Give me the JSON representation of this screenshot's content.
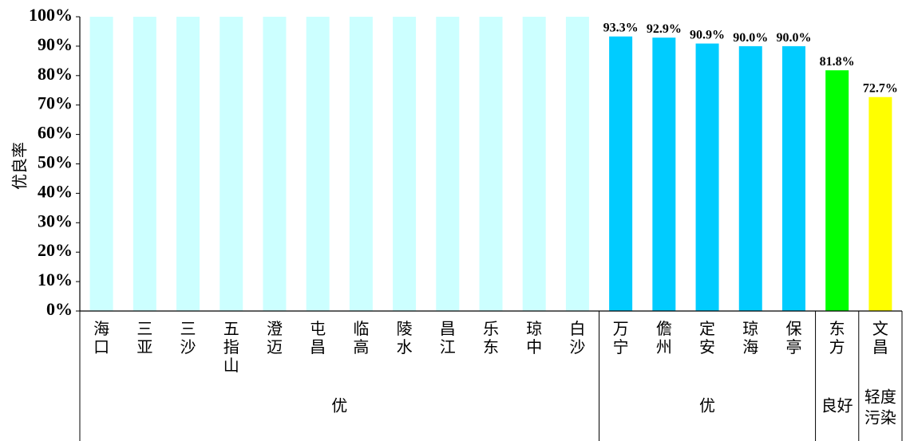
{
  "chart_data": {
    "type": "bar",
    "title": "",
    "xlabel": "",
    "ylabel": "优良率",
    "ylim": [
      0,
      100
    ],
    "y_ticks": [
      "0%",
      "10%",
      "20%",
      "30%",
      "40%",
      "50%",
      "60%",
      "70%",
      "80%",
      "90%",
      "100%"
    ],
    "categories": [
      {
        "name": [
          "海",
          "口"
        ],
        "value": 100,
        "color": "#CCFFFF",
        "label": ""
      },
      {
        "name": [
          "三",
          "亚"
        ],
        "value": 100,
        "color": "#CCFFFF",
        "label": ""
      },
      {
        "name": [
          "三",
          "沙"
        ],
        "value": 100,
        "color": "#CCFFFF",
        "label": ""
      },
      {
        "name": [
          "五",
          "指",
          "山"
        ],
        "value": 100,
        "color": "#CCFFFF",
        "label": ""
      },
      {
        "name": [
          "澄",
          "迈"
        ],
        "value": 100,
        "color": "#CCFFFF",
        "label": ""
      },
      {
        "name": [
          "屯",
          "昌"
        ],
        "value": 100,
        "color": "#CCFFFF",
        "label": ""
      },
      {
        "name": [
          "临",
          "高"
        ],
        "value": 100,
        "color": "#CCFFFF",
        "label": ""
      },
      {
        "name": [
          "陵",
          "水"
        ],
        "value": 100,
        "color": "#CCFFFF",
        "label": ""
      },
      {
        "name": [
          "昌",
          "江"
        ],
        "value": 100,
        "color": "#CCFFFF",
        "label": ""
      },
      {
        "name": [
          "乐",
          "东"
        ],
        "value": 100,
        "color": "#CCFFFF",
        "label": ""
      },
      {
        "name": [
          "琼",
          "中"
        ],
        "value": 100,
        "color": "#CCFFFF",
        "label": ""
      },
      {
        "name": [
          "白",
          "沙"
        ],
        "value": 100,
        "color": "#CCFFFF",
        "label": ""
      },
      {
        "name": [
          "万",
          "宁"
        ],
        "value": 93.3,
        "color": "#00CCFF",
        "label": "93.3%"
      },
      {
        "name": [
          "儋",
          "州"
        ],
        "value": 92.9,
        "color": "#00CCFF",
        "label": "92.9%"
      },
      {
        "name": [
          "定",
          "安"
        ],
        "value": 90.9,
        "color": "#00CCFF",
        "label": "90.9%"
      },
      {
        "name": [
          "琼",
          "海"
        ],
        "value": 90.0,
        "color": "#00CCFF",
        "label": "90.0%"
      },
      {
        "name": [
          "保",
          "亭"
        ],
        "value": 90.0,
        "color": "#00CCFF",
        "label": "90.0%"
      },
      {
        "name": [
          "东",
          "方"
        ],
        "value": 81.8,
        "color": "#00FF00",
        "label": "81.8%"
      },
      {
        "name": [
          "文",
          "昌"
        ],
        "value": 72.7,
        "color": "#FFFF00",
        "label": "72.7%"
      }
    ],
    "groups": [
      {
        "label": [
          "优"
        ],
        "start": 0,
        "end": 11
      },
      {
        "label": [
          "优"
        ],
        "start": 12,
        "end": 16
      },
      {
        "label": [
          "良好"
        ],
        "start": 17,
        "end": 17
      },
      {
        "label": [
          "轻度",
          "污染"
        ],
        "start": 18,
        "end": 18
      }
    ]
  }
}
